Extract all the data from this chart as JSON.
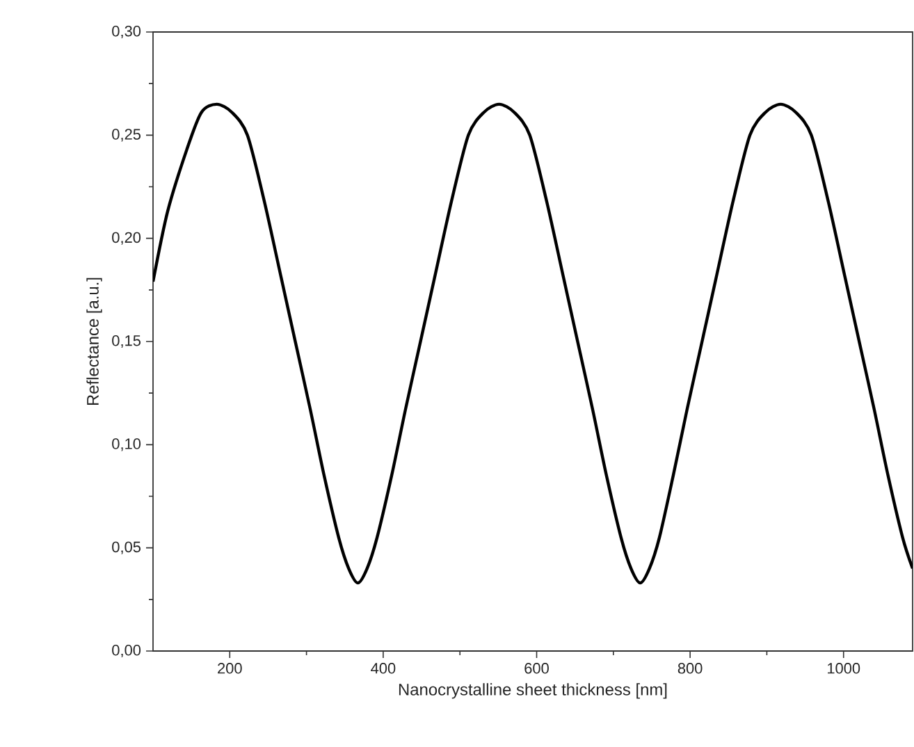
{
  "chart_data": {
    "type": "line",
    "xlabel": "Nanocrystalline sheet thickness [nm]",
    "ylabel": "Reflectance [a.u.]",
    "xlim": [
      100,
      1090
    ],
    "ylim": [
      0,
      0.3
    ],
    "xticks": [
      200,
      400,
      600,
      800,
      1000
    ],
    "yticks": [
      {
        "value": 0,
        "label": "0,00"
      },
      {
        "value": 0.05,
        "label": "0,05"
      },
      {
        "value": 0.1,
        "label": "0,10"
      },
      {
        "value": 0.15,
        "label": "0,15"
      },
      {
        "value": 0.2,
        "label": "0,20"
      },
      {
        "value": 0.25,
        "label": "0,25"
      },
      {
        "value": 0.3,
        "label": "0,30"
      }
    ],
    "marker": "none",
    "line_style": "solid",
    "x": [
      100,
      119,
      144,
      163,
      183,
      203,
      223,
      245,
      267,
      286,
      305,
      323,
      342,
      355,
      367,
      379,
      392,
      411,
      429,
      448,
      467,
      489,
      511,
      531,
      551,
      571,
      591,
      613,
      635,
      654,
      673,
      691,
      710,
      723,
      735,
      747,
      760,
      778,
      796,
      815,
      834,
      856,
      878,
      898,
      918,
      938,
      958,
      980,
      1002,
      1021,
      1040,
      1058,
      1077,
      1090
    ],
    "series": [
      {
        "color": "#000000",
        "values": [
          0.179,
          0.213,
          0.243,
          0.261,
          0.265,
          0.261,
          0.25,
          0.218,
          0.181,
          0.149,
          0.117,
          0.085,
          0.055,
          0.04,
          0.033,
          0.04,
          0.055,
          0.085,
          0.117,
          0.149,
          0.181,
          0.218,
          0.25,
          0.261,
          0.265,
          0.261,
          0.25,
          0.218,
          0.181,
          0.149,
          0.117,
          0.085,
          0.055,
          0.04,
          0.033,
          0.04,
          0.055,
          0.085,
          0.117,
          0.149,
          0.181,
          0.218,
          0.25,
          0.261,
          0.265,
          0.261,
          0.25,
          0.218,
          0.181,
          0.149,
          0.117,
          0.085,
          0.055,
          0.04
        ]
      }
    ]
  }
}
